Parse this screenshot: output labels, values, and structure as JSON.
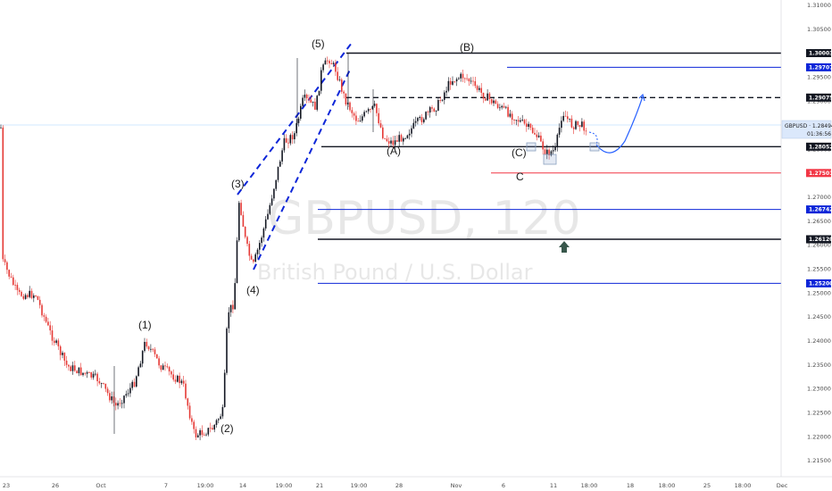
{
  "chart_data": {
    "type": "candlestick",
    "symbol": "GBPUSD",
    "interval": "120",
    "description": "British Pound / U.S. Dollar",
    "watermark": "GBPUSD, 120",
    "ylim": [
      1.2125,
      1.3125
    ],
    "y_ticks": [
      "1.31000",
      "1.30500",
      "1.30000",
      "1.29500",
      "1.29000",
      "1.28500",
      "1.28000",
      "1.27500",
      "1.27000",
      "1.26500",
      "1.26000",
      "1.25500",
      "1.25000",
      "1.24500",
      "1.24000",
      "1.23500",
      "1.23000",
      "1.22500",
      "1.22000",
      "1.21500"
    ],
    "x_ticks": [
      "23",
      "26",
      "Oct",
      "7",
      "19:00",
      "14",
      "19:00",
      "21",
      "19:00",
      "28",
      "Nov",
      "6",
      "11",
      "18:00",
      "18",
      "18:00",
      "25",
      "18:00",
      "Dec"
    ],
    "price_label": {
      "symbol": "GBPUSD",
      "value": "1.28494",
      "time": "01:36:56"
    },
    "level_tags": [
      {
        "value": "1.30003",
        "color": "#131722",
        "text_color": "#ffffff"
      },
      {
        "value": "1.29707",
        "color": "#0d26d8",
        "text_color": "#ffffff"
      },
      {
        "value": "1.29075",
        "color": "#131722",
        "text_color": "#ffffff"
      },
      {
        "value": "1.28052",
        "color": "#131722",
        "text_color": "#ffffff"
      },
      {
        "value": "1.27501",
        "color": "#f23645",
        "text_color": "#ffffff"
      },
      {
        "value": "1.26742",
        "color": "#0d26d8",
        "text_color": "#ffffff"
      },
      {
        "value": "1.26120",
        "color": "#131722",
        "text_color": "#ffffff"
      },
      {
        "value": "1.25200",
        "color": "#0d26d8",
        "text_color": "#ffffff"
      }
    ],
    "horizontal_levels": [
      {
        "value": 1.30003,
        "color": "#131722",
        "style": "solid"
      },
      {
        "value": 1.29707,
        "color": "#0d26d8",
        "style": "solid"
      },
      {
        "value": 1.29075,
        "color": "#131722",
        "style": "dashed"
      },
      {
        "value": 1.28052,
        "color": "#131722",
        "style": "solid"
      },
      {
        "value": 1.27501,
        "color": "#f23645",
        "style": "solid"
      },
      {
        "value": 1.26742,
        "color": "#0d26d8",
        "style": "solid"
      },
      {
        "value": 1.2612,
        "color": "#131722",
        "style": "solid"
      },
      {
        "value": 1.252,
        "color": "#0d26d8",
        "style": "solid"
      }
    ],
    "wave_labels": [
      {
        "text": "(1)"
      },
      {
        "text": "(2)"
      },
      {
        "text": "(3)"
      },
      {
        "text": "(4)"
      },
      {
        "text": "(5)"
      },
      {
        "text": "(A)"
      },
      {
        "text": "(B)"
      },
      {
        "text": "(C)"
      },
      {
        "text": "C"
      }
    ],
    "colors": {
      "up": "#131722",
      "down": "#e53935",
      "accent": "#0d26d8",
      "projection": "#2962ff",
      "arrow": "#38574b"
    }
  }
}
